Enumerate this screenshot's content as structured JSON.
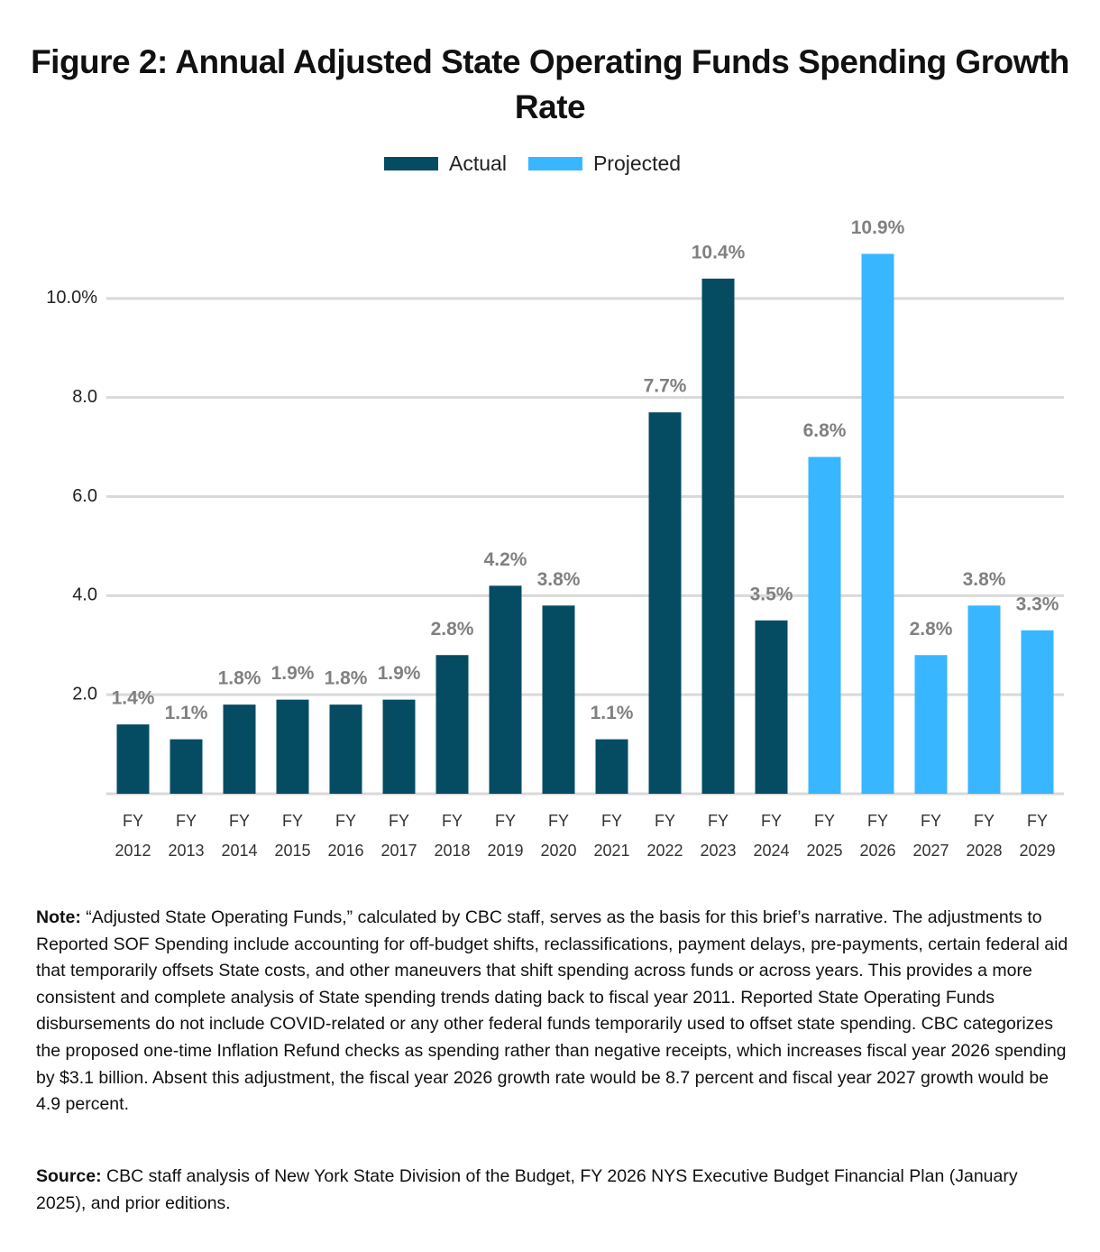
{
  "chart_data": {
    "type": "bar",
    "title": "Figure 2: Annual Adjusted State Operating Funds Spending Growth Rate",
    "categories": [
      "FY 2012",
      "FY 2013",
      "FY 2014",
      "FY 2015",
      "FY 2016",
      "FY 2017",
      "FY 2018",
      "FY 2019",
      "FY 2020",
      "FY 2021",
      "FY 2022",
      "FY 2023",
      "FY 2024",
      "FY 2025",
      "FY 2026",
      "FY 2027",
      "FY 2028",
      "FY 2029"
    ],
    "series": [
      {
        "name": "Actual",
        "color": "#054c63",
        "values": [
          1.4,
          1.1,
          1.8,
          1.9,
          1.8,
          1.9,
          2.8,
          4.2,
          3.8,
          1.1,
          7.7,
          10.4,
          3.5,
          null,
          null,
          null,
          null,
          null
        ],
        "value_labels": [
          "1.4%",
          "1.1%",
          "1.8%",
          "1.9%",
          "1.8%",
          "1.9%",
          "2.8%",
          "4.2%",
          "3.8%",
          "1.1%",
          "7.7%",
          "10.4%",
          "3.5%",
          null,
          null,
          null,
          null,
          null
        ]
      },
      {
        "name": "Projected",
        "color": "#38b6ff",
        "values": [
          null,
          null,
          null,
          null,
          null,
          null,
          null,
          null,
          null,
          null,
          null,
          null,
          null,
          6.8,
          10.9,
          2.8,
          3.8,
          3.3
        ],
        "value_labels": [
          null,
          null,
          null,
          null,
          null,
          null,
          null,
          null,
          null,
          null,
          null,
          null,
          null,
          "6.8%",
          "10.9%",
          "2.8%",
          "3.8%",
          "3.3%"
        ]
      }
    ],
    "ylim": [
      0,
      12
    ],
    "yticks": [
      {
        "value": 2,
        "label": "2.0"
      },
      {
        "value": 4,
        "label": "4.0"
      },
      {
        "value": 6,
        "label": "6.0"
      },
      {
        "value": 8,
        "label": "8.0"
      },
      {
        "value": 10,
        "label": "10.0%"
      }
    ],
    "grid": true,
    "legend": "top"
  },
  "note": {
    "label": "Note:",
    "text": "“Adjusted State Operating Funds,” calculated by CBC staff, serves as the basis for this brief’s narrative. The adjustments to Reported SOF Spending include accounting for off-budget shifts, reclassifications, payment delays, pre-payments, certain federal aid that temporarily offsets State costs, and other maneuvers that shift spending across funds or across years. This provides a more consistent and complete analysis of State spending trends dating back to fiscal year 2011. Reported State Operating Funds disbursements do not include COVID-related or any other federal funds temporarily used to offset state spending. CBC categorizes the proposed one-time Inflation Refund checks as spending rather than negative receipts, which increases fiscal year 2026 spending by $3.1 billion. Absent this adjustment, the fiscal year 2026 growth rate would be 8.7 percent and fiscal year 2027 growth would be 4.9 percent."
  },
  "source": {
    "label": "Source:",
    "text": "CBC staff analysis of New York State Division of the Budget, FY 2026 NYS Executive Budget Financial Plan (January 2025), and prior editions."
  }
}
